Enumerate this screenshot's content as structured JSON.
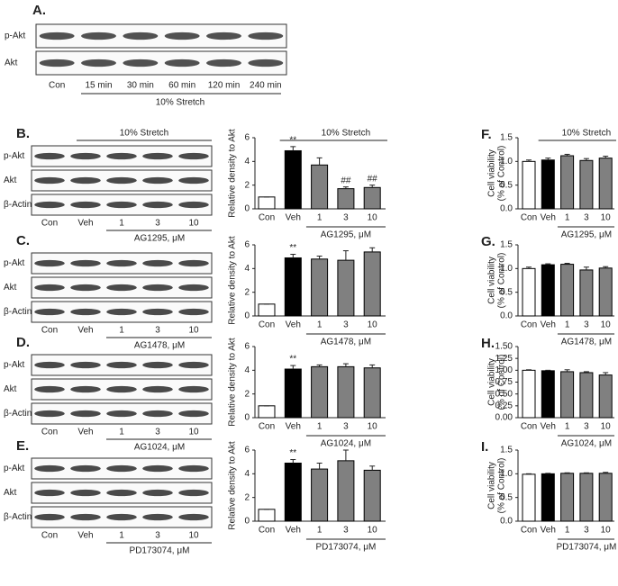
{
  "panel_a": {
    "label": "A.",
    "rows": [
      "p-Akt",
      "Akt"
    ],
    "lanes": [
      "Con",
      "15 min",
      "30 min",
      "60 min",
      "120 min",
      "240 min"
    ],
    "group_label": "10% Stretch"
  },
  "blots": [
    {
      "label": "B.",
      "header": "10% Stretch",
      "rows": [
        "p-Akt",
        "Akt",
        "β-Actin"
      ],
      "lanes": [
        "Con",
        "Veh",
        "1",
        "3",
        "10"
      ],
      "group_label": "AG1295, μM"
    },
    {
      "label": "C.",
      "rows": [
        "p-Akt",
        "Akt",
        "β-Actin"
      ],
      "lanes": [
        "Con",
        "Veh",
        "1",
        "3",
        "10"
      ],
      "group_label": "AG1478, μM"
    },
    {
      "label": "D.",
      "rows": [
        "p-Akt",
        "Akt",
        "β-Actin"
      ],
      "lanes": [
        "Con",
        "Veh",
        "1",
        "3",
        "10"
      ],
      "group_label": "AG1024, μM"
    },
    {
      "label": "E.",
      "rows": [
        "p-Akt",
        "Akt",
        "β-Actin"
      ],
      "lanes": [
        "Con",
        "Veh",
        "1",
        "3",
        "10"
      ],
      "group_label": "PD173074, μM"
    }
  ],
  "chart_data": [
    {
      "type": "bar",
      "header": "10% Stretch",
      "ylabel": [
        "Relative density to Akt"
      ],
      "categories": [
        "Con",
        "Veh",
        "1",
        "3",
        "10"
      ],
      "values": [
        1,
        4.9,
        3.7,
        1.7,
        1.8
      ],
      "errors": [
        0,
        0.35,
        0.6,
        0.15,
        0.2
      ],
      "colors": [
        "#ffffff",
        "#000000",
        "#808080",
        "#808080",
        "#808080"
      ],
      "ylim": [
        0,
        6
      ],
      "yticks": [
        0,
        2,
        4,
        6
      ],
      "group_label": "AG1295, μM",
      "annotations": [
        {
          "text": "**",
          "at": "Veh"
        },
        {
          "text": "##",
          "at": "3"
        },
        {
          "text": "##",
          "at": "10"
        }
      ]
    },
    {
      "type": "bar",
      "ylabel": [
        "Relative density to Akt"
      ],
      "categories": [
        "Con",
        "Veh",
        "1",
        "3",
        "10"
      ],
      "values": [
        1,
        4.9,
        4.8,
        4.7,
        5.4
      ],
      "errors": [
        0,
        0.3,
        0.25,
        0.8,
        0.35
      ],
      "colors": [
        "#ffffff",
        "#000000",
        "#808080",
        "#808080",
        "#808080"
      ],
      "ylim": [
        0,
        6
      ],
      "yticks": [
        0,
        2,
        4,
        6
      ],
      "group_label": "AG1478, μM",
      "annotations": [
        {
          "text": "**",
          "at": "Veh"
        }
      ]
    },
    {
      "type": "bar",
      "ylabel": [
        "Relative density to Akt"
      ],
      "categories": [
        "Con",
        "Veh",
        "1",
        "3",
        "10"
      ],
      "values": [
        1,
        4.1,
        4.3,
        4.3,
        4.2
      ],
      "errors": [
        0,
        0.3,
        0.15,
        0.25,
        0.25
      ],
      "colors": [
        "#ffffff",
        "#000000",
        "#808080",
        "#808080",
        "#808080"
      ],
      "ylim": [
        0,
        6
      ],
      "yticks": [
        0,
        2,
        4,
        6
      ],
      "group_label": "AG1024, μM",
      "annotations": [
        {
          "text": "**",
          "at": "Veh"
        }
      ]
    },
    {
      "type": "bar",
      "ylabel": [
        "Relative density to Akt"
      ],
      "categories": [
        "Con",
        "Veh",
        "1",
        "3",
        "10"
      ],
      "values": [
        1,
        4.9,
        4.4,
        5.1,
        4.3
      ],
      "errors": [
        0,
        0.3,
        0.5,
        0.9,
        0.35
      ],
      "colors": [
        "#ffffff",
        "#000000",
        "#808080",
        "#808080",
        "#808080"
      ],
      "ylim": [
        0,
        6
      ],
      "yticks": [
        0,
        2,
        4,
        6
      ],
      "group_label": "PD173074, μM",
      "annotations": [
        {
          "text": "**",
          "at": "Veh"
        }
      ]
    },
    {
      "type": "bar",
      "panel": "F.",
      "header": "10% Stretch",
      "ylabel": [
        "Cell viability",
        "(% of Control)"
      ],
      "categories": [
        "Con",
        "Veh",
        "1",
        "3",
        "10"
      ],
      "values": [
        1.0,
        1.03,
        1.12,
        1.02,
        1.07
      ],
      "errors": [
        0.03,
        0.04,
        0.03,
        0.04,
        0.04
      ],
      "colors": [
        "#ffffff",
        "#000000",
        "#808080",
        "#808080",
        "#808080"
      ],
      "ylim": [
        0,
        1.5
      ],
      "yticks": [
        {
          "value": 0,
          "label": "0.0"
        },
        0.5,
        {
          "value": 1,
          "label": "1.0"
        },
        1.5
      ],
      "group_label": "AG1295, μM"
    },
    {
      "type": "bar",
      "panel": "G.",
      "ylabel": [
        "Cell viability",
        "(% of Control)"
      ],
      "categories": [
        "Con",
        "Veh",
        "1",
        "3",
        "10"
      ],
      "values": [
        1.0,
        1.08,
        1.09,
        0.97,
        1.01
      ],
      "errors": [
        0.03,
        0.02,
        0.02,
        0.06,
        0.03
      ],
      "colors": [
        "#ffffff",
        "#000000",
        "#808080",
        "#808080",
        "#808080"
      ],
      "ylim": [
        0,
        1.5
      ],
      "yticks": [
        {
          "value": 0,
          "label": "0.0"
        },
        0.5,
        {
          "value": 1,
          "label": "1.0"
        },
        1.5
      ],
      "group_label": "AG1478, μM"
    },
    {
      "type": "bar",
      "panel": "H.",
      "ylabel": [
        "Cell viability",
        "(% of Control)"
      ],
      "categories": [
        "Con",
        "Veh",
        "1",
        "3",
        "10"
      ],
      "values": [
        1.0,
        0.99,
        0.97,
        0.95,
        0.9
      ],
      "errors": [
        0.01,
        0.01,
        0.04,
        0.02,
        0.05
      ],
      "colors": [
        "#ffffff",
        "#000000",
        "#808080",
        "#808080",
        "#808080"
      ],
      "ylim": [
        0,
        1.5
      ],
      "yticks": [
        {
          "value": 0,
          "label": "0.00"
        },
        {
          "value": 0.25,
          "label": "0.25"
        },
        {
          "value": 0.5,
          "label": "0.50"
        },
        {
          "value": 0.75,
          "label": "0.75"
        },
        {
          "value": 1,
          "label": "1.00"
        },
        {
          "value": 1.25,
          "label": "1.25"
        },
        {
          "value": 1.5,
          "label": "1.50"
        }
      ],
      "group_label": "AG1024, μM"
    },
    {
      "type": "bar",
      "panel": "I.",
      "ylabel": [
        "Cell viability",
        "(% of Control)"
      ],
      "categories": [
        "Con",
        "Veh",
        "1",
        "3",
        "10"
      ],
      "values": [
        0.99,
        1.0,
        1.01,
        1.01,
        1.01
      ],
      "errors": [
        0.01,
        0.01,
        0.01,
        0.01,
        0.02
      ],
      "colors": [
        "#ffffff",
        "#000000",
        "#808080",
        "#808080",
        "#808080"
      ],
      "ylim": [
        0,
        1.5
      ],
      "yticks": [
        {
          "value": 0,
          "label": "0.0"
        },
        0.5,
        {
          "value": 1,
          "label": "1.0"
        },
        1.5
      ],
      "group_label": "PD173074, μM"
    }
  ]
}
